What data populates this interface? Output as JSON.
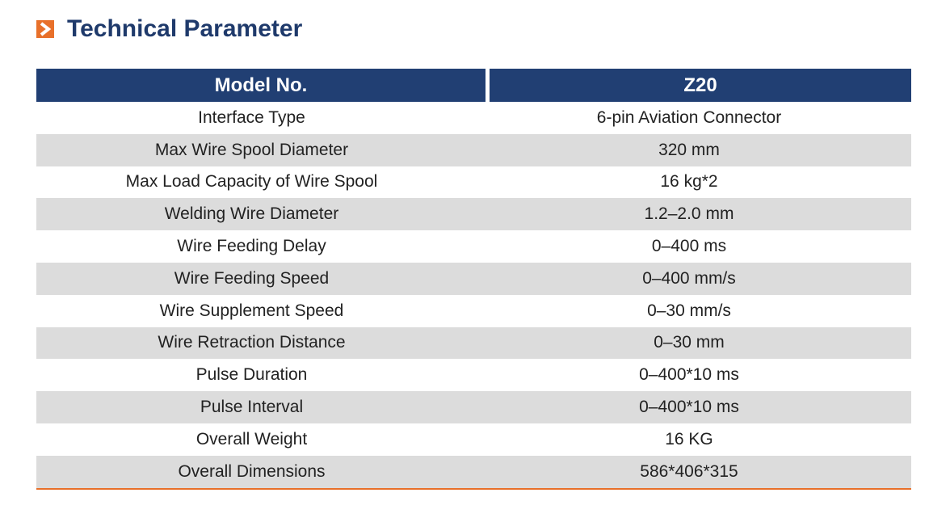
{
  "header": {
    "title": "Technical Parameter"
  },
  "table": {
    "columns": [
      "Model No.",
      "Z20"
    ],
    "rows": [
      [
        "Interface Type",
        "6-pin Aviation Connector"
      ],
      [
        "Max Wire Spool Diameter",
        "320 mm"
      ],
      [
        "Max Load Capacity of Wire Spool",
        "16 kg*2"
      ],
      [
        "Welding Wire Diameter",
        "1.2–2.0 mm"
      ],
      [
        "Wire Feeding Delay",
        "0–400 ms"
      ],
      [
        "Wire Feeding Speed",
        "0–400 mm/s"
      ],
      [
        "Wire Supplement Speed",
        "0–30 mm/s"
      ],
      [
        "Wire Retraction Distance",
        "0–30 mm"
      ],
      [
        "Pulse Duration",
        "0–400*10 ms"
      ],
      [
        "Pulse Interval",
        "0–400*10 ms"
      ],
      [
        "Overall Weight",
        "16 KG"
      ],
      [
        "Overall Dimensions",
        "586*406*315"
      ]
    ]
  }
}
